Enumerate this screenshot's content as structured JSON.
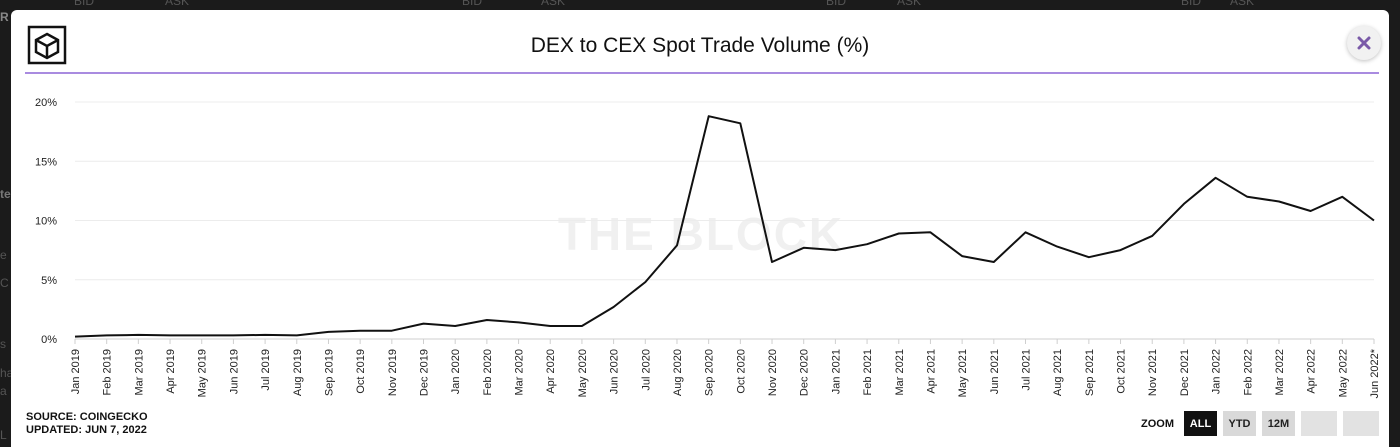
{
  "background": {
    "top_strip": [
      "BID",
      "ASK",
      "BID",
      "ASK",
      "BID",
      "ASK",
      "BID",
      "ASK"
    ],
    "left_fragments": [
      "R",
      "te",
      "e",
      "C",
      "s",
      "ha",
      "a",
      "L"
    ]
  },
  "modal": {
    "title": "DEX to CEX Spot Trade Volume (%)",
    "accent_color": "#a98be0",
    "logo_icon": "cube-logo-icon",
    "close_icon": "close-icon"
  },
  "watermark": "THE BLOCK",
  "chart_data": {
    "type": "line",
    "title": "DEX to CEX Spot Trade Volume (%)",
    "xlabel": "",
    "ylabel": "",
    "ylim": [
      0,
      20
    ],
    "yticks": [
      "0%",
      "5%",
      "10%",
      "15%",
      "20%"
    ],
    "grid": true,
    "legend": "none",
    "line_color": "#111111",
    "categories": [
      "Jan 2019",
      "Feb 2019",
      "Mar 2019",
      "Apr 2019",
      "May 2019",
      "Jun 2019",
      "Jul 2019",
      "Aug 2019",
      "Sep 2019",
      "Oct 2019",
      "Nov 2019",
      "Dec 2019",
      "Jan 2020",
      "Feb 2020",
      "Mar 2020",
      "Apr 2020",
      "May 2020",
      "Jun 2020",
      "Jul 2020",
      "Aug 2020",
      "Sep 2020",
      "Oct 2020",
      "Nov 2020",
      "Dec 2020",
      "Jan 2021",
      "Feb 2021",
      "Mar 2021",
      "Apr 2021",
      "May 2021",
      "Jun 2021",
      "Jul 2021",
      "Aug 2021",
      "Sep 2021",
      "Oct 2021",
      "Nov 2021",
      "Dec 2021",
      "Jan 2022",
      "Feb 2022",
      "Mar 2022",
      "Apr 2022",
      "May 2022",
      "Jun 2022*"
    ],
    "values": [
      0.2,
      0.3,
      0.35,
      0.3,
      0.3,
      0.3,
      0.35,
      0.3,
      0.6,
      0.7,
      0.7,
      1.3,
      1.1,
      1.6,
      1.4,
      1.1,
      1.1,
      2.7,
      4.8,
      7.9,
      18.8,
      18.2,
      6.5,
      7.7,
      7.5,
      8.0,
      8.9,
      9.0,
      7.0,
      6.5,
      9.0,
      7.8,
      6.9,
      7.5,
      8.7,
      11.4,
      13.6,
      12.0,
      11.6,
      10.8,
      12.0,
      10.0
    ]
  },
  "footer": {
    "source": "SOURCE: COINGECKO",
    "updated": "UPDATED: JUN 7, 2022"
  },
  "zoom": {
    "label": "ZOOM",
    "buttons": [
      "ALL",
      "YTD",
      "12M"
    ],
    "active": "ALL"
  }
}
